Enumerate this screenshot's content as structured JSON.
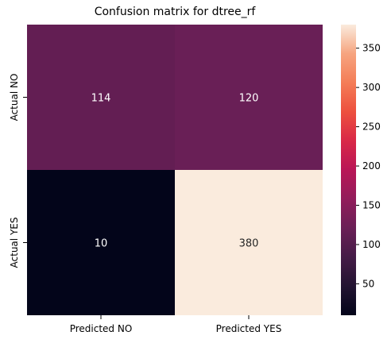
{
  "chart_data": {
    "type": "heatmap",
    "title": "Confusion matrix for dtree_rf",
    "x_categories": [
      "Predicted NO",
      "Predicted YES"
    ],
    "y_categories": [
      "Actual NO",
      "Actual YES"
    ],
    "values": [
      [
        114,
        120
      ],
      [
        10,
        380
      ]
    ],
    "colormap": "rocket",
    "colorbar": {
      "ticks": [
        50,
        100,
        150,
        200,
        250,
        300,
        350
      ],
      "range": [
        10,
        380
      ]
    }
  }
}
